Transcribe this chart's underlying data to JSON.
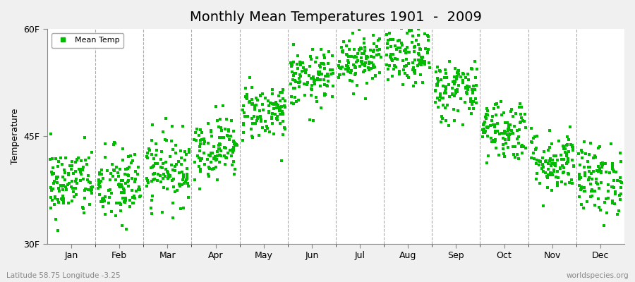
{
  "title": "Monthly Mean Temperatures 1901  -  2009",
  "ylabel": "Temperature",
  "subtitle_left": "Latitude 58.75 Longitude -3.25",
  "subtitle_right": "worldspecies.org",
  "legend_label": "Mean Temp",
  "ylim": [
    30,
    60
  ],
  "yticks": [
    30,
    45,
    60
  ],
  "ytick_labels": [
    "30F",
    "45F",
    "60F"
  ],
  "months": [
    "Jan",
    "Feb",
    "Mar",
    "Apr",
    "May",
    "Jun",
    "Jul",
    "Aug",
    "Sep",
    "Oct",
    "Nov",
    "Dec"
  ],
  "month_means_F": [
    38.5,
    38.0,
    40.5,
    43.5,
    48.5,
    53.0,
    56.0,
    56.0,
    51.5,
    46.0,
    41.5,
    39.0
  ],
  "month_stds_F": [
    2.5,
    2.8,
    2.5,
    2.2,
    2.0,
    2.0,
    2.0,
    2.0,
    2.2,
    2.2,
    2.2,
    2.5
  ],
  "n_years": 109,
  "seed": 42,
  "marker_color": "#00bb00",
  "marker": "s",
  "marker_size": 2.5,
  "figure_bg": "#f0f0f0",
  "plot_bg": "#f0f0f0",
  "title_fontsize": 14,
  "axis_label_fontsize": 9,
  "tick_fontsize": 9,
  "legend_fontsize": 8,
  "dashed_color": "#888888"
}
